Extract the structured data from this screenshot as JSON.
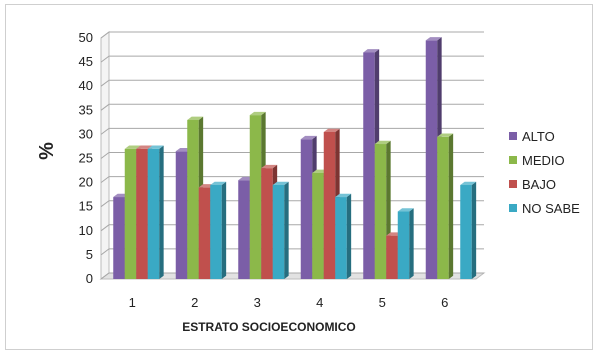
{
  "chart_data": {
    "type": "bar",
    "title": "",
    "xlabel": "ESTRATO SOCIOECONOMICO",
    "ylabel": "%",
    "ylim": [
      0,
      50
    ],
    "yticks": [
      0,
      5,
      10,
      15,
      20,
      25,
      30,
      35,
      40,
      45,
      50
    ],
    "categories": [
      "1",
      "2",
      "3",
      "4",
      "5",
      "6"
    ],
    "grid": true,
    "legend_position": "right",
    "style": "3d-column",
    "series": [
      {
        "name": "ALTO",
        "color": "#7b5ea7",
        "values": [
          17,
          26.5,
          20.5,
          29,
          47,
          49.5
        ]
      },
      {
        "name": "MEDIO",
        "color": "#8cb84a",
        "values": [
          27,
          33,
          34,
          22,
          28,
          29.5
        ]
      },
      {
        "name": "BAJO",
        "color": "#c0504d",
        "values": [
          27,
          19,
          23,
          30.5,
          9,
          0
        ]
      },
      {
        "name": "NO SABE",
        "color": "#3aa9c4",
        "values": [
          27,
          19.5,
          19.5,
          17,
          14,
          19.5
        ]
      }
    ]
  }
}
